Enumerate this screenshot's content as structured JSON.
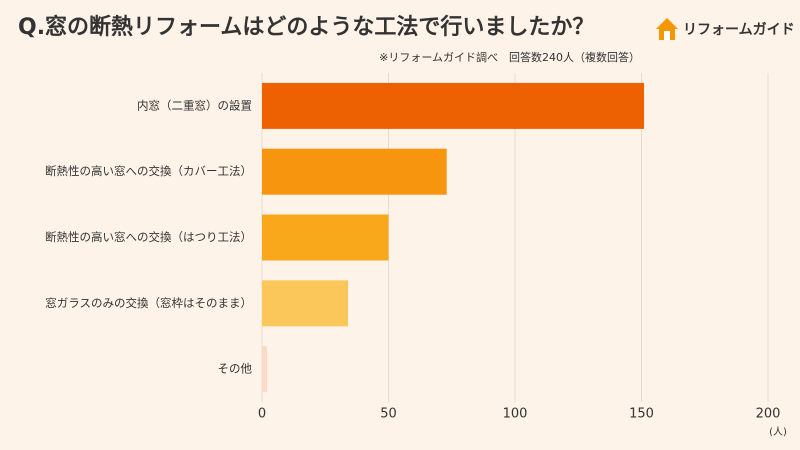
{
  "chart_data": {
    "type": "bar",
    "orientation": "horizontal",
    "title": "Q.窓の断熱リフォームはどのような工法で行いましたか？",
    "subtitle": "※リフォームガイド調べ　回答数240人（複数回答）",
    "brand": "リフォームガイド",
    "x_unit": "(人)",
    "categories": [
      "内窓（二重窓）の設置",
      "断熱性の高い窓への交換（カバー工法）",
      "断熱性の高い窓への交換（はつり工法）",
      "窓ガラスのみの交換（窓枠はそのまま）",
      "その他"
    ],
    "values": [
      151,
      73,
      50,
      34,
      2
    ],
    "colors": [
      "#ed6103",
      "#f7960e",
      "#f9a81b",
      "#fcc75a",
      "#fbd9c4"
    ],
    "xlim": [
      0,
      200
    ],
    "xticks": [
      0,
      50,
      100,
      150,
      200
    ],
    "grid": true
  }
}
